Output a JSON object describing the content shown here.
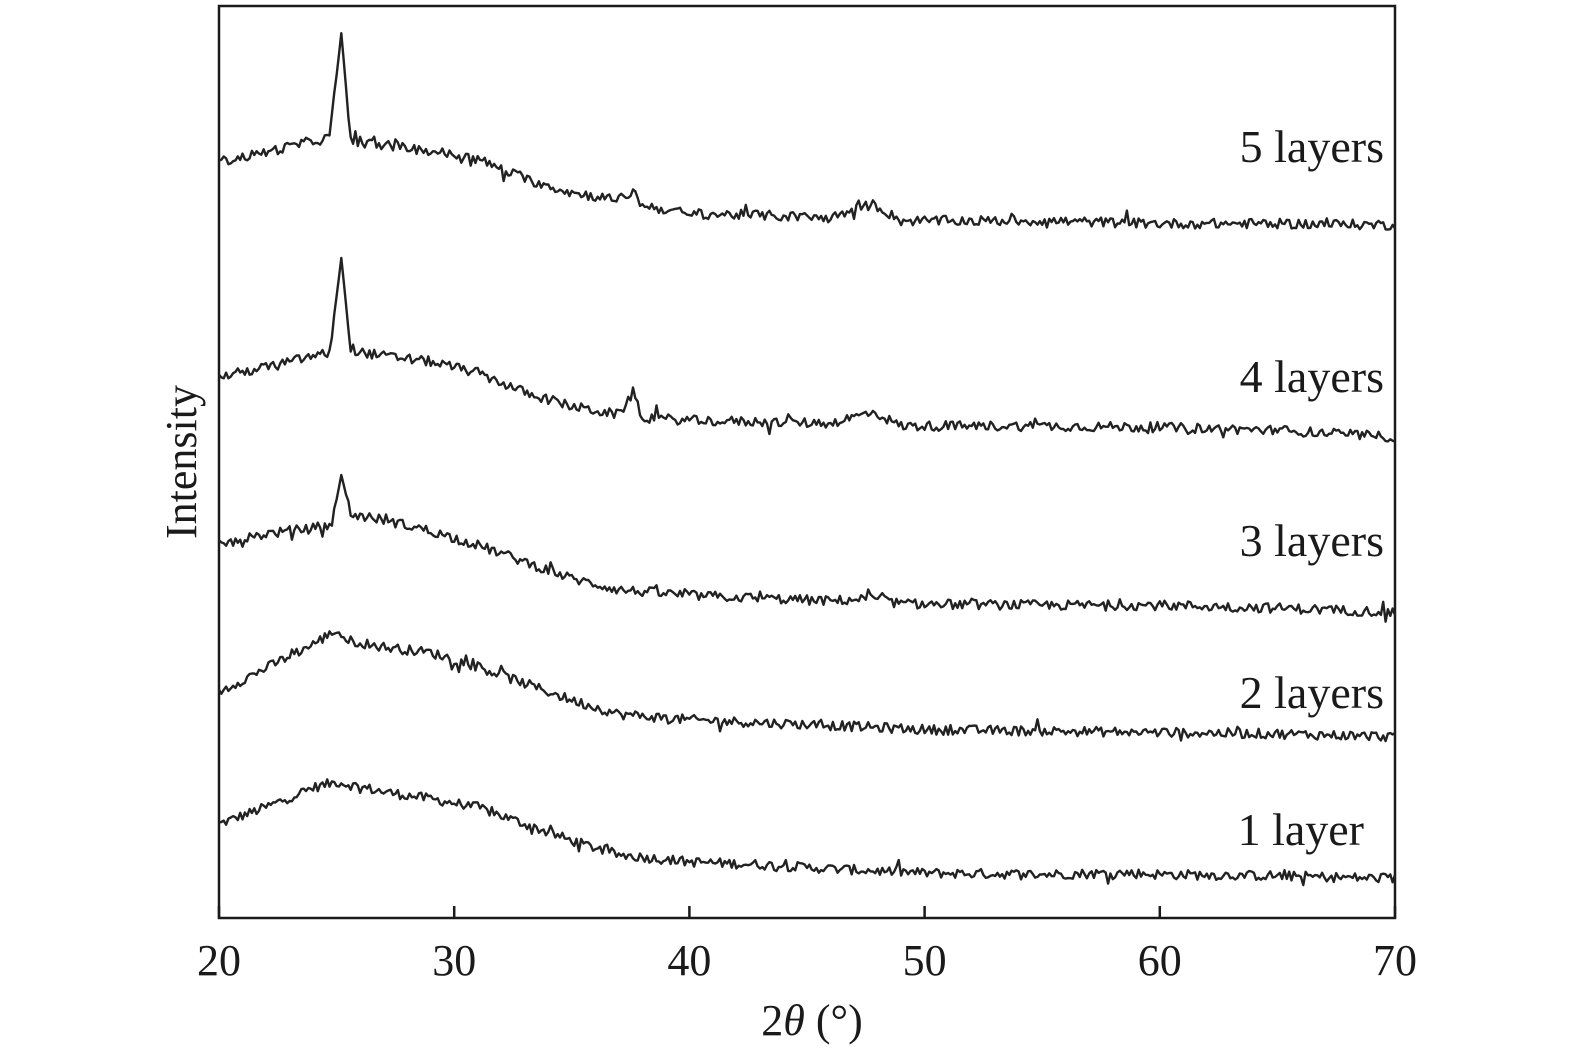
{
  "chart_data": {
    "type": "line",
    "xlabel_prefix": "2",
    "xlabel_symbol": "θ",
    "xlabel_suffix": " (°)",
    "ylabel": "Intensity",
    "xlim": [
      20,
      70
    ],
    "x_ticks": [
      "20",
      "30",
      "40",
      "50",
      "60",
      "70"
    ],
    "y_ticks_shown": false,
    "grid": false,
    "line_color": "#222222",
    "series": [
      {
        "name": "1 layer",
        "points": [
          [
            20,
            0.4
          ],
          [
            22,
            0.52
          ],
          [
            24,
            0.66
          ],
          [
            25,
            0.7
          ],
          [
            27,
            0.63
          ],
          [
            29,
            0.58
          ],
          [
            31,
            0.52
          ],
          [
            33,
            0.4
          ],
          [
            35,
            0.28
          ],
          [
            37,
            0.18
          ],
          [
            40,
            0.13
          ],
          [
            43,
            0.11
          ],
          [
            46,
            0.08
          ],
          [
            50,
            0.05
          ],
          [
            55,
            0.04
          ],
          [
            58.5,
            0.05
          ],
          [
            60,
            0.04
          ],
          [
            65,
            0.03
          ],
          [
            70,
            0.01
          ]
        ]
      },
      {
        "name": "2 layers",
        "points": [
          [
            20,
            0.38
          ],
          [
            22,
            0.55
          ],
          [
            24,
            0.72
          ],
          [
            25,
            0.82
          ],
          [
            25.4,
            0.75
          ],
          [
            27,
            0.7
          ],
          [
            29,
            0.66
          ],
          [
            31,
            0.56
          ],
          [
            33,
            0.44
          ],
          [
            35,
            0.32
          ],
          [
            37,
            0.22
          ],
          [
            40,
            0.18
          ],
          [
            43,
            0.16
          ],
          [
            46,
            0.14
          ],
          [
            50,
            0.11
          ],
          [
            55,
            0.1
          ],
          [
            60,
            0.09
          ],
          [
            65,
            0.08
          ],
          [
            70,
            0.06
          ]
        ]
      },
      {
        "name": "3 layers",
        "points": [
          [
            20,
            0.5
          ],
          [
            22,
            0.58
          ],
          [
            24,
            0.62
          ],
          [
            24.8,
            0.65
          ],
          [
            25.2,
            1.0
          ],
          [
            25.6,
            0.72
          ],
          [
            27,
            0.68
          ],
          [
            29,
            0.6
          ],
          [
            31,
            0.5
          ],
          [
            33,
            0.38
          ],
          [
            35,
            0.26
          ],
          [
            37,
            0.18
          ],
          [
            40,
            0.14
          ],
          [
            43,
            0.12
          ],
          [
            46,
            0.1
          ],
          [
            47.8,
            0.12
          ],
          [
            49,
            0.08
          ],
          [
            55,
            0.07
          ],
          [
            60,
            0.07
          ],
          [
            65,
            0.05
          ],
          [
            70,
            0.02
          ]
        ]
      },
      {
        "name": "4 layers",
        "points": [
          [
            20,
            0.45
          ],
          [
            22,
            0.52
          ],
          [
            24,
            0.6
          ],
          [
            24.7,
            0.62
          ],
          [
            25.2,
            1.3
          ],
          [
            25.6,
            0.64
          ],
          [
            27,
            0.6
          ],
          [
            29,
            0.56
          ],
          [
            31,
            0.48
          ],
          [
            33,
            0.34
          ],
          [
            35,
            0.24
          ],
          [
            37,
            0.18
          ],
          [
            37.6,
            0.34
          ],
          [
            38,
            0.16
          ],
          [
            40,
            0.14
          ],
          [
            43,
            0.13
          ],
          [
            46,
            0.12
          ],
          [
            47.8,
            0.2
          ],
          [
            49,
            0.1
          ],
          [
            55,
            0.1
          ],
          [
            60,
            0.09
          ],
          [
            65,
            0.07
          ],
          [
            70,
            0.02
          ]
        ]
      },
      {
        "name": "5 layers",
        "points": [
          [
            20,
            0.45
          ],
          [
            22,
            0.52
          ],
          [
            24,
            0.6
          ],
          [
            24.7,
            0.62
          ],
          [
            25.2,
            1.37
          ],
          [
            25.6,
            0.6
          ],
          [
            27,
            0.57
          ],
          [
            29,
            0.53
          ],
          [
            31,
            0.47
          ],
          [
            33,
            0.33
          ],
          [
            35,
            0.23
          ],
          [
            37,
            0.18
          ],
          [
            37.6,
            0.24
          ],
          [
            38,
            0.14
          ],
          [
            40,
            0.08
          ],
          [
            43,
            0.07
          ],
          [
            46,
            0.05
          ],
          [
            47.8,
            0.15
          ],
          [
            49,
            0.03
          ],
          [
            55,
            0.03
          ],
          [
            60,
            0.01
          ],
          [
            65,
            0.01
          ],
          [
            70,
            0.0
          ]
        ]
      }
    ]
  }
}
